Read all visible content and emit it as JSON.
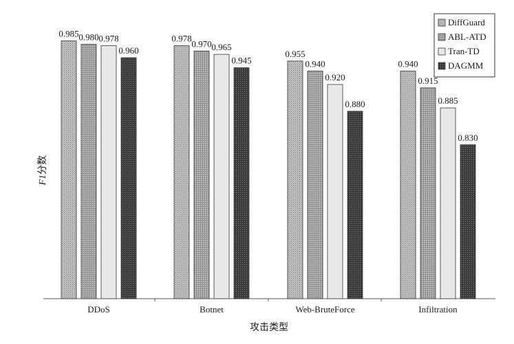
{
  "chart_data": {
    "type": "bar",
    "title": "",
    "xlabel": "攻击类型",
    "ylabel": "F1分数",
    "ylabel_italic_part": "F1",
    "ylabel_rest": "分数",
    "ylim": [
      0.6,
      1.0
    ],
    "grid": false,
    "legend_position": "top-right",
    "categories": [
      "DDoS",
      "Botnet",
      "Web-BruteForce",
      "Infiltration"
    ],
    "series": [
      {
        "name": "DiffGuard",
        "values": [
          0.985,
          0.978,
          0.955,
          0.94
        ],
        "labels": [
          "0.985",
          "0.978",
          "0.955",
          "0.940"
        ],
        "pattern": "dots",
        "color": "#b5b5b5"
      },
      {
        "name": "ABL-ATD",
        "values": [
          0.98,
          0.97,
          0.94,
          0.915
        ],
        "labels": [
          "0.980",
          "0.970",
          "0.940",
          "0.915"
        ],
        "pattern": "grid",
        "color": "#a9a9a9"
      },
      {
        "name": "Tran-TD",
        "values": [
          0.978,
          0.965,
          0.92,
          0.885
        ],
        "labels": [
          "0.978",
          "0.965",
          "0.920",
          "0.885"
        ],
        "pattern": "solid",
        "color": "#e6e6e6"
      },
      {
        "name": "DAGMM",
        "values": [
          0.96,
          0.945,
          0.88,
          0.83
        ],
        "labels": [
          "0.960",
          "0.945",
          "0.880",
          "0.830"
        ],
        "pattern": "dark",
        "color": "#4d4d4d"
      }
    ]
  }
}
